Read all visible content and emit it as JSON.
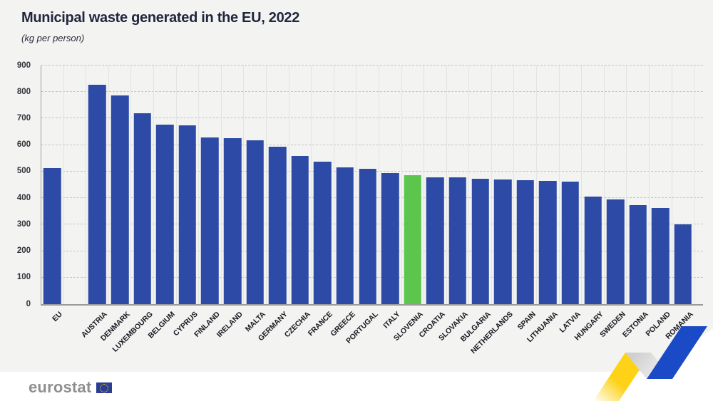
{
  "header": {
    "title": "Municipal waste generated in the EU, 2022",
    "subtitle": "(kg per person)"
  },
  "chart_data": {
    "type": "bar",
    "title": "Municipal waste generated in the EU, 2022",
    "subtitle": "(kg per person)",
    "categories": [
      "EU",
      "AUSTRIA",
      "DENMARK",
      "LUXEMBOURG",
      "BELGIUM",
      "CYPRUS",
      "FINLAND",
      "IRELAND",
      "MALTA",
      "GERMANY",
      "CZECHIA",
      "FRANCE",
      "GREECE",
      "PORTUGAL",
      "ITALY",
      "SLOVENIA",
      "CROATIA",
      "SLOVAKIA",
      "BULGARIA",
      "NETHERLANDS",
      "SPAIN",
      "LITHUANIA",
      "LATVIA",
      "HUNGARY",
      "SWEDEN",
      "ESTONIA",
      "POLAND",
      "ROMANIA"
    ],
    "values": [
      513,
      827,
      787,
      720,
      678,
      675,
      628,
      625,
      619,
      593,
      560,
      538,
      516,
      511,
      494,
      487,
      478,
      478,
      473,
      471,
      467,
      466,
      462,
      406,
      395,
      373,
      364,
      301
    ],
    "highlight_category": "SLOVENIA",
    "xlabel": "",
    "ylabel": "",
    "ylim": [
      0,
      900
    ],
    "yticks": [
      0,
      100,
      200,
      300,
      400,
      500,
      600,
      700,
      800,
      900
    ],
    "grid": "horizontal dashed gray + vertical light solid",
    "legend_position": "none",
    "bar_color": "#2d4ba6",
    "highlight_color": "#5bc64b",
    "eu_gap_after_first_bar": true
  },
  "footer": {
    "logo_text": "eurostat",
    "flag_icon": "eu-flag-icon"
  },
  "decoration": {
    "ribbon": "yellow-gray-blue zigzag arrow, bottom right",
    "yellow": "#fdd217",
    "gray_fold": "#d9d9d9",
    "blue": "#1b4ac6",
    "background": "#f3f3f2",
    "footer_background": "#ffffff"
  }
}
